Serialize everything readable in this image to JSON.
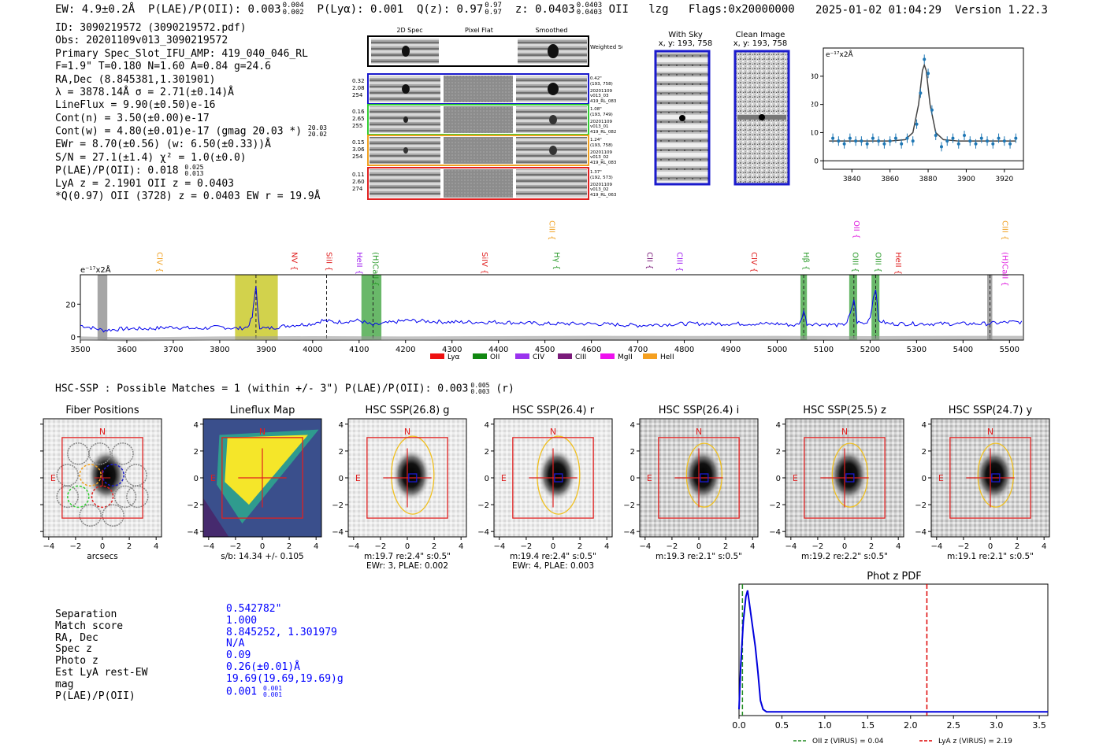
{
  "header": {
    "ew": "EW: 4.9±0.2Å",
    "plae": "P(LAE)/P(OII): 0.003",
    "plae_hi": "0.004",
    "plae_lo": "0.002",
    "plya": "P(Lyα): 0.001",
    "qz": "Q(z): 0.97",
    "qz_hi": "0.97",
    "qz_lo": "0.97",
    "z": "z: 0.0403",
    "z_hi": "0.0403",
    "z_lo": "0.0403",
    "z_line": "OII",
    "lzg": "lzg",
    "flags": "Flags:0x20000000",
    "datetime": "2025-01-02 01:04:29",
    "version": "Version 1.22.3"
  },
  "info": {
    "lines": [
      "ID: 3090219572 (3090219572.pdf)",
      "Obs: 20201109v013_3090219572",
      "Primary Spec_Slot_IFU_AMP: 419_040_046_RL",
      "F=1.9\"  T=0.180  N=1.60  A=0.84  g=24.6",
      "RA,Dec (8.845381,1.301901)",
      "λ = 3878.14Å  σ = 2.71(±0.14)Å",
      "LineFlux = 9.90(±0.50)e-16",
      "Cont(n) = 3.50(±0.00)e-17",
      "Cont(w) = 4.80(±0.01)e-17 (gmag 20.03 *)",
      "EWr = 8.70(±0.56) (w: 6.50(±0.33))Å",
      "S/N = 27.1(±1.4)  χ² = 1.0(±0.0)",
      "P(LAE)/P(OII): 0.018",
      "LyA z = 2.1901  OII z = 0.0403",
      "*Q(0.97) OII (3728) z = 0.0403  EW r = 19.9Å"
    ],
    "gmag_hi": "20.03",
    "gmag_lo": "20.02",
    "plae_hi": "0.025",
    "plae_lo": "0.013"
  },
  "cutouts": {
    "col_titles": [
      "2D Spec",
      "Pixel Flat",
      "Smoothed"
    ],
    "weighted_sum": "Weighted Sum",
    "rows": [
      {
        "left": [
          "0.32",
          "2.08",
          "254"
        ],
        "right": [
          "0.42\"",
          "(193, 758)",
          "20201109",
          "v013_03",
          "419_RL_083"
        ],
        "color": "#1a1acc"
      },
      {
        "left": [
          "0.16",
          "2.65",
          "255"
        ],
        "right": [
          "1.08\"",
          "(193, 749)",
          "20201109",
          "v013_01",
          "419_RL_082"
        ],
        "color": "#33cc33"
      },
      {
        "left": [
          "0.15",
          "3.06",
          "254"
        ],
        "right": [
          "1.24\"",
          "(193, 758)",
          "20201109",
          "v013_02",
          "419_RL_083"
        ],
        "color": "#f0a020"
      },
      {
        "left": [
          "0.11",
          "2.60",
          "274"
        ],
        "right": [
          "1.37\"",
          "(192, 573)",
          "20201109",
          "v013_02",
          "419_RL_063"
        ],
        "color": "#e02020"
      }
    ]
  },
  "sky_panels": {
    "with_sky_title": "With Sky",
    "with_sky_coords": "x, y: 193, 758",
    "clean_title": "Clean Image",
    "clean_coords": "x, y: 193, 758"
  },
  "zoom_chart": {
    "units": "e⁻¹⁷x2Å"
  },
  "spectrum": {
    "units": "e⁻¹⁷x2Å",
    "line_labels": [
      {
        "label": "CIV",
        "w": 3665,
        "color": "#f0a020",
        "row": 1
      },
      {
        "label": "NV",
        "w": 3955,
        "color": "#e02020",
        "row": 1
      },
      {
        "label": "SiII",
        "w": 4030,
        "color": "#e02020",
        "row": 1
      },
      {
        "label": "HeII",
        "w": 4095,
        "color": "#a020f0",
        "row": 1
      },
      {
        "label": "(H)CaII",
        "w": 4130,
        "color": "#2a9a2a",
        "row": 1
      },
      {
        "label": "SiIV",
        "w": 4365,
        "color": "#e02020",
        "row": 1
      },
      {
        "label": "CIII",
        "w": 4510,
        "color": "#f0a020",
        "row": 0
      },
      {
        "label": "Hγ",
        "w": 4520,
        "color": "#2a9a2a",
        "row": 1
      },
      {
        "label": "CII",
        "w": 4720,
        "color": "#7a1a7a",
        "row": 1
      },
      {
        "label": "CIII",
        "w": 4785,
        "color": "#a020f0",
        "row": 1
      },
      {
        "label": "CIV",
        "w": 4945,
        "color": "#e02020",
        "row": 1
      },
      {
        "label": "Hβ",
        "w": 5057,
        "color": "#2a9a2a",
        "row": 1
      },
      {
        "label": "OII",
        "w": 5165,
        "color": "#e020e0",
        "row": 0
      },
      {
        "label": "OIII",
        "w": 5163,
        "color": "#2a9a2a",
        "row": 1
      },
      {
        "label": "OIII",
        "w": 5212,
        "color": "#2a9a2a",
        "row": 1
      },
      {
        "label": "HeII",
        "w": 5255,
        "color": "#e02020",
        "row": 1
      },
      {
        "label": "CIII",
        "w": 5485,
        "color": "#f0a020",
        "row": 0
      },
      {
        "label": "(H)CaII",
        "w": 5485,
        "color": "#e020e0",
        "row": 1
      }
    ],
    "legend": [
      {
        "label": "Lyα",
        "color": "#ee1111"
      },
      {
        "label": "OII",
        "color": "#118811"
      },
      {
        "label": "CIV",
        "color": "#9a33ee"
      },
      {
        "label": "CIII",
        "color": "#7a1a7a"
      },
      {
        "label": "MgII",
        "color": "#ee11ee"
      },
      {
        "label": "HeII",
        "color": "#f5a020"
      }
    ]
  },
  "hsc": {
    "header": "HSC-SSP : Possible Matches = 1 (within +/- 3\")  P(LAE)/P(OII): 0.003",
    "header_hi": "0.005",
    "header_lo": "0.003",
    "header_band": "(r)",
    "north": "N",
    "east": "E",
    "panels": [
      {
        "title": "Fiber Positions",
        "caption": [
          "arcsecs"
        ]
      },
      {
        "title": "Lineflux Map",
        "caption": [
          "s/b: 14.34 +/- 0.105"
        ]
      },
      {
        "title": "HSC SSP(26.8) g",
        "caption": [
          "m:19.7  re:2.4\"  s:0.5\"",
          "EWr: 3, PLAE: 0.002"
        ]
      },
      {
        "title": "HSC SSP(26.4) r",
        "caption": [
          "m:19.4  re:2.4\"  s:0.5\"",
          "EWr: 4, PLAE: 0.003"
        ]
      },
      {
        "title": "HSC SSP(26.4) i",
        "caption": [
          "m:19.3  re:2.1\"  s:0.5\""
        ]
      },
      {
        "title": "HSC SSP(25.5) z",
        "caption": [
          "m:19.2  re:2.2\"  s:0.5\""
        ]
      },
      {
        "title": "HSC SSP(24.7) y",
        "caption": [
          "m:19.1  re:2.1\"  s:0.5\""
        ]
      }
    ]
  },
  "match": {
    "rows": [
      {
        "label": "Separation",
        "value": "0.542782\""
      },
      {
        "label": "Match score",
        "value": "1.000"
      },
      {
        "label": "RA, Dec",
        "value": "8.845252, 1.301979"
      },
      {
        "label": "Spec z",
        "value": "N/A"
      },
      {
        "label": "Photo z",
        "value": "0.09"
      },
      {
        "label": "Est LyA rest-EW",
        "value": "0.26(±0.01)Å"
      },
      {
        "label": "mag",
        "value": "19.69(19.69,19.69)g"
      },
      {
        "label": "P(LAE)/P(OII)",
        "value": "0.001"
      }
    ],
    "plae_hi": "0.001",
    "plae_lo": "0.001"
  },
  "chart_data": [
    {
      "type": "line",
      "id": "line-zoom",
      "title": "",
      "ylabel": "e⁻¹⁷x2Å",
      "xlim": [
        3825,
        3930
      ],
      "ylim": [
        -3,
        40
      ],
      "xticks": [
        3840,
        3860,
        3880,
        3900,
        3920
      ],
      "yticks": [
        0,
        10,
        20,
        30
      ],
      "series": [
        {
          "name": "data",
          "style": "errorbar",
          "color": "#1f77b4",
          "x": [
            3830,
            3833,
            3836,
            3839,
            3842,
            3845,
            3848,
            3851,
            3854,
            3857,
            3860,
            3863,
            3866,
            3869,
            3872,
            3874,
            3876,
            3878,
            3880,
            3882,
            3884,
            3887,
            3890,
            3893,
            3896,
            3899,
            3902,
            3905,
            3908,
            3911,
            3914,
            3917,
            3920,
            3923,
            3926
          ],
          "y": [
            8,
            7,
            6,
            8,
            7,
            7,
            6,
            8,
            7,
            6,
            7,
            8,
            6,
            8,
            7,
            13,
            24,
            36,
            31,
            18,
            9,
            5,
            7,
            8,
            6,
            9,
            7,
            6,
            8,
            7,
            6,
            8,
            7,
            6,
            8
          ]
        },
        {
          "name": "fit",
          "style": "line",
          "color": "#444444",
          "x": [
            3828,
            3860,
            3868,
            3872,
            3875,
            3877,
            3878,
            3879,
            3881,
            3884,
            3888,
            3896,
            3926
          ],
          "y": [
            7,
            7,
            7.5,
            10,
            20,
            32,
            34,
            32,
            20,
            10,
            7.5,
            7,
            7
          ]
        }
      ]
    },
    {
      "type": "line",
      "id": "full-spectrum",
      "title": "",
      "ylabel": "e⁻¹⁷x2Å",
      "xlim": [
        3500,
        5530
      ],
      "ylim": [
        -2,
        38
      ],
      "xticks": [
        3500,
        3600,
        3700,
        3800,
        3900,
        4000,
        4100,
        4200,
        4300,
        4400,
        4500,
        4600,
        4700,
        4800,
        4900,
        5000,
        5100,
        5200,
        5300,
        5400,
        5500
      ],
      "yticks": [
        0,
        20
      ],
      "series": [
        {
          "name": "flux",
          "color": "#0000ee",
          "x": [
            3500,
            3550,
            3600,
            3650,
            3700,
            3750,
            3800,
            3840,
            3860,
            3870,
            3875,
            3878,
            3881,
            3886,
            3900,
            3950,
            4000,
            4020,
            4050,
            4100,
            4130,
            4150,
            4200,
            4300,
            4400,
            4500,
            4600,
            4700,
            4800,
            4900,
            5000,
            5040,
            5050,
            5057,
            5064,
            5080,
            5140,
            5150,
            5160,
            5165,
            5172,
            5190,
            5200,
            5207,
            5212,
            5218,
            5240,
            5300,
            5400,
            5450,
            5500,
            5530
          ],
          "y": [
            7,
            4,
            5,
            5,
            6,
            5,
            6,
            5,
            6,
            12,
            24,
            32,
            18,
            6,
            5,
            7,
            8,
            10,
            9,
            10,
            7,
            8,
            10,
            9,
            9,
            8,
            8,
            7,
            8,
            8,
            8,
            7,
            9,
            16,
            8,
            8,
            7,
            9,
            16,
            23,
            9,
            8,
            12,
            24,
            30,
            10,
            8,
            8,
            8,
            8,
            9,
            9
          ]
        },
        {
          "name": "sky",
          "color": "#999999",
          "x": [
            3500,
            3600,
            3800,
            4000,
            4200,
            4400,
            4600,
            4800,
            5000,
            5200,
            5400,
            5530
          ],
          "y": [
            -1,
            -1.5,
            -1,
            -0.8,
            -1,
            -0.8,
            -0.6,
            -0.7,
            -0.6,
            -0.8,
            -0.6,
            -0.6
          ]
        }
      ],
      "bands": [
        {
          "x0": 3537,
          "x1": 3558,
          "color": "#808080"
        },
        {
          "x0": 3833,
          "x1": 3925,
          "color": "#bfbf00"
        },
        {
          "x0": 4105,
          "x1": 4148,
          "color": "#2a9a2a"
        },
        {
          "x0": 5050,
          "x1": 5064,
          "color": "#2a9a2a"
        },
        {
          "x0": 5155,
          "x1": 5172,
          "color": "#2a9a2a"
        },
        {
          "x0": 5203,
          "x1": 5220,
          "color": "#2a9a2a"
        },
        {
          "x0": 5452,
          "x1": 5463,
          "color": "#808080"
        }
      ]
    },
    {
      "type": "line",
      "id": "photz-pdf",
      "title": "Phot z PDF",
      "xlim": [
        0,
        3.6
      ],
      "ylim": [
        0,
        1.05
      ],
      "xticks": [
        0.0,
        0.5,
        1.0,
        1.5,
        2.0,
        2.5,
        3.0,
        3.5
      ],
      "xtick_labels": [
        "0.0",
        "0.5",
        "1.0",
        "1.5",
        "2.0",
        "2.5",
        "3.0",
        "3.5"
      ],
      "series": [
        {
          "name": "pdf",
          "color": "#0000dd",
          "x": [
            0,
            0.02,
            0.05,
            0.08,
            0.1,
            0.13,
            0.16,
            0.19,
            0.22,
            0.25,
            0.28,
            0.32,
            0.4,
            0.6,
            1.0,
            2.0,
            3.0,
            3.6
          ],
          "y": [
            0.05,
            0.4,
            0.75,
            0.95,
            1.0,
            0.85,
            0.7,
            0.55,
            0.35,
            0.12,
            0.05,
            0.03,
            0.03,
            0.03,
            0.03,
            0.03,
            0.03,
            0.03
          ]
        }
      ],
      "vlines": [
        {
          "x": 0.04,
          "color": "#228b22",
          "label": "OII z (VIRUS) = 0.04"
        },
        {
          "x": 2.19,
          "color": "#dd0000",
          "label": "LyA z (VIRUS) = 2.19"
        }
      ]
    }
  ]
}
